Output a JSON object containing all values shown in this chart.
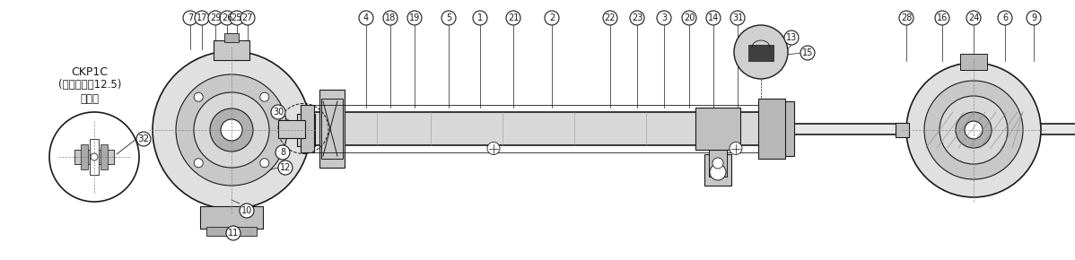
{
  "title": "",
  "background_color": "#ffffff",
  "fig_width": 11.98,
  "fig_height": 2.9,
  "dpi": 100,
  "text_ckp1c": "CKP1C",
  "text_clevis": "(クレビス幁12.5)",
  "text_baai": "の場合",
  "label_32": "32",
  "callout_numbers_top_left": [
    "7",
    "17",
    "29",
    "26",
    "25",
    "27"
  ],
  "callout_numbers_bottom_left": [
    "8",
    "12",
    "10",
    "11",
    "30"
  ],
  "callout_numbers_top_middle": [
    "4",
    "18",
    "19",
    "5",
    "1",
    "21",
    "2"
  ],
  "callout_numbers_top_right_mid": [
    "22",
    "23",
    "3",
    "20",
    "14",
    "31"
  ],
  "callout_numbers_bottom_mid": [
    "13",
    "15"
  ],
  "callout_numbers_top_right": [
    "28",
    "16",
    "24",
    "6",
    "9"
  ],
  "line_color": "#1a1a1a",
  "circle_color": "#1a1a1a",
  "fill_light": "#d0d0d0",
  "fill_mid": "#a0a0a0",
  "fill_dark": "#606060"
}
